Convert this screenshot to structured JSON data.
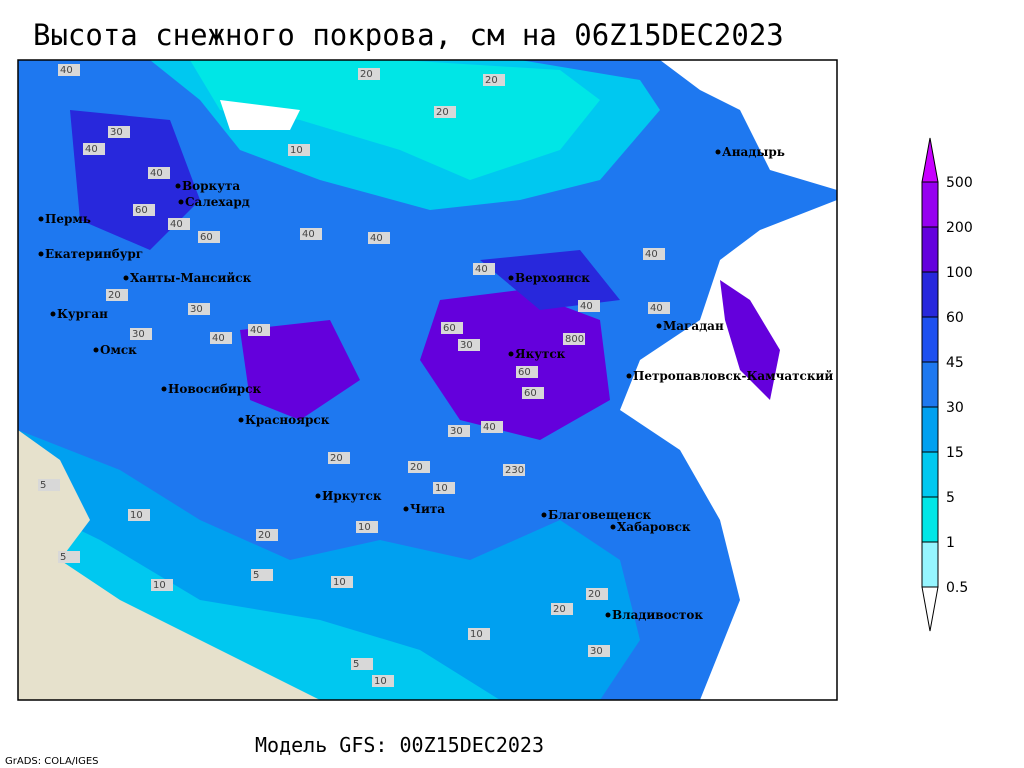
{
  "header": {
    "title": "Высота снежного покрова, см на 06Z15DEC2023"
  },
  "footer": {
    "model": "Модель GFS: 00Z15DEC2023",
    "credit": "GrADS: COLA/IGES"
  },
  "legend": {
    "levels": [
      0.5,
      1,
      5,
      15,
      30,
      45,
      60,
      100,
      200,
      500
    ],
    "colors": [
      "#ffffff",
      "#96f5ff",
      "#00e6e6",
      "#00c8f0",
      "#00a0f0",
      "#1e78f0",
      "#1e50f0",
      "#2828dc",
      "#6400dc",
      "#9600f0",
      "#c800ff"
    ]
  },
  "cities": [
    "Воркута",
    "Салехард",
    "Пермь",
    "Екатеринбург",
    "Ханты-Мансийск",
    "Курган",
    "Омск",
    "Новосибирск",
    "Красноярск",
    "Иркутск",
    "Чита",
    "Благовещенск",
    "Хабаровск",
    "Владивосток",
    "Верхоянск",
    "Якутск",
    "Магадан",
    "Петропавловск-Камчатский",
    "Анадырь"
  ],
  "contour_labels": [
    40,
    20,
    20,
    20,
    10,
    40,
    30,
    40,
    60,
    40,
    60,
    40,
    40,
    40,
    40,
    40,
    40,
    20,
    30,
    40,
    30,
    40,
    60,
    30,
    800,
    60,
    60,
    40,
    30,
    230,
    20,
    10,
    20,
    10,
    5,
    10,
    20,
    5,
    10,
    10,
    5,
    20,
    10,
    30,
    20,
    10,
    5
  ]
}
